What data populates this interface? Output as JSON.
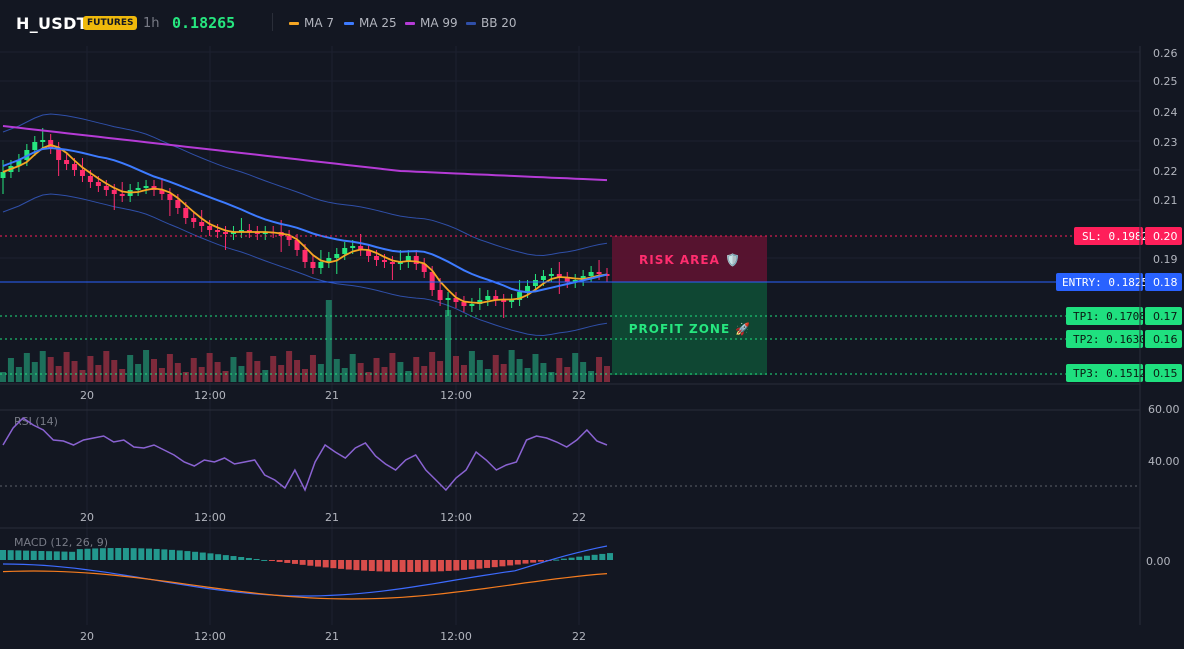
{
  "header": {
    "symbol": "H_USDT",
    "badge": "FUTURES",
    "timeframe": "1h",
    "price": "0.18265",
    "legend": [
      {
        "label": "MA 7",
        "color": "#f5a623"
      },
      {
        "label": "MA 25",
        "color": "#3d7bff"
      },
      {
        "label": "MA 99",
        "color": "#b53bd6"
      },
      {
        "label": "BB 20",
        "color": "#2f4fa8"
      }
    ]
  },
  "price_axis": {
    "ticks": [
      "0.26",
      "0.25",
      "0.24",
      "0.23",
      "0.22",
      "0.21",
      "0.20",
      "0.19",
      "0.18",
      "0.17",
      "0.16",
      "0.15"
    ]
  },
  "time_axis": {
    "ticks": [
      "20",
      "12:00",
      "21",
      "12:00",
      "22"
    ]
  },
  "levels": {
    "sl": {
      "label": "SL: 0.19821",
      "value": "0.20",
      "color": "#ff1f5a"
    },
    "entry": {
      "label": "ENTRY: 0.18257",
      "value": "0.18",
      "color": "#2962ff"
    },
    "tp1": {
      "label": "TP1: 0.17084",
      "value": "0.17",
      "color": "#1fe07f"
    },
    "tp2": {
      "label": "TP2: 0.16302",
      "value": "0.16",
      "color": "#1fe07f"
    },
    "tp3": {
      "label": "TP3: 0.15128",
      "value": "0.15",
      "color": "#1fe07f"
    }
  },
  "zones": {
    "risk": "RISK AREA 🛡️",
    "profit": "PROFIT ZONE 🚀"
  },
  "rsi": {
    "label": "RSI (14)",
    "ticks": [
      "60.00",
      "40.00"
    ],
    "color": "#8a63d2"
  },
  "macd": {
    "label": "MACD (12, 26, 9)",
    "ticks": [
      "0.00"
    ],
    "macd_color": "#3d6bff",
    "signal_color": "#f57c1f"
  },
  "chart_data": {
    "type": "candlestick",
    "series": [
      {
        "name": "MA 7"
      },
      {
        "name": "MA 25"
      },
      {
        "name": "MA 99"
      },
      {
        "name": "BB 20"
      }
    ],
    "last_price": 0.18265,
    "stop_loss": 0.19821,
    "entry": 0.18257,
    "take_profit": [
      0.17084,
      0.16302,
      0.15128
    ]
  }
}
